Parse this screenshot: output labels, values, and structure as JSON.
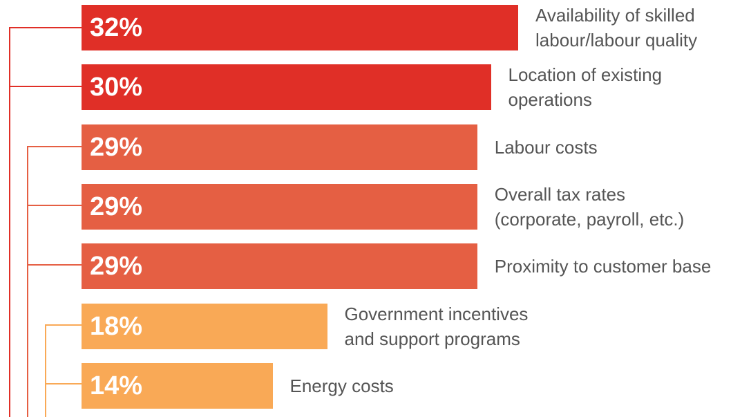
{
  "chart_data": {
    "type": "bar",
    "orientation": "horizontal",
    "categories": [
      "Availability of skilled labour/labour quality",
      "Location of existing operations",
      "Labour costs",
      "Overall tax rates (corporate, payroll, etc.)",
      "Proximity to customer base",
      "Government incentives and support programs",
      "Energy costs"
    ],
    "values": [
      32,
      30,
      29,
      29,
      29,
      18,
      14
    ],
    "value_labels": [
      "32%",
      "30%",
      "29%",
      "29%",
      "29%",
      "18%",
      "14%"
    ],
    "colors": [
      "#e02f27",
      "#e02f27",
      "#e55f43",
      "#e55f43",
      "#e55f43",
      "#f9a956",
      "#f9a956"
    ]
  }
}
